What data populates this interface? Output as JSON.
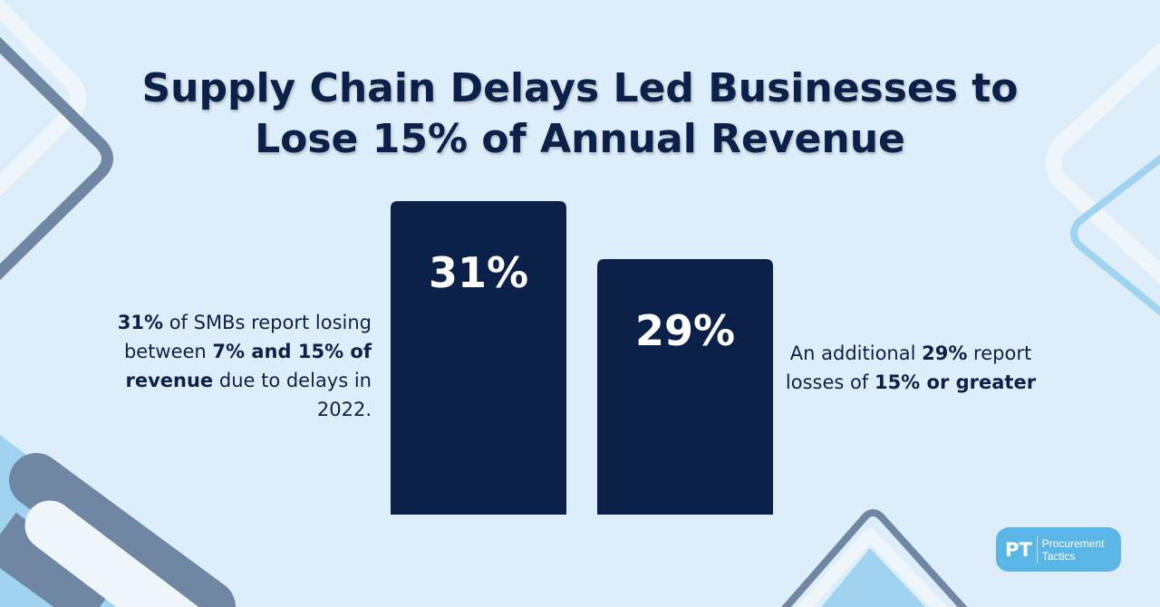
{
  "title_lines": [
    "Supply Chain Delays Led Businesses to",
    "Lose 15% of Annual Revenue"
  ],
  "chart_data": {
    "type": "bar",
    "title": "Supply Chain Delays Led Businesses to Lose 15% of Annual Revenue",
    "categories": [
      "",
      ""
    ],
    "values": [
      31,
      29
    ],
    "data_labels": [
      "31%",
      "29%"
    ],
    "xlabel": "",
    "ylabel": "",
    "grid": false,
    "bar_color": "#0b2149",
    "label_color": "#ffffff"
  },
  "left_text": {
    "b1": "31%",
    "t1": " of SMBs report losing between ",
    "b2": "7% and 15% of revenue",
    "t2": " due to delays in 2022."
  },
  "right_text": {
    "t1": "An additional ",
    "b1": "29%",
    "t2": " report losses of ",
    "b2": "15% or greater"
  },
  "logo": {
    "mark": "PT",
    "name_line1": "Procurement",
    "name_line2": "Tactics"
  },
  "colors": {
    "background": "#ddedf9",
    "navy": "#0b2149",
    "slate": "#6f87a3",
    "sky": "#9fd3f0",
    "logo_blue": "#5bb6e8"
  }
}
